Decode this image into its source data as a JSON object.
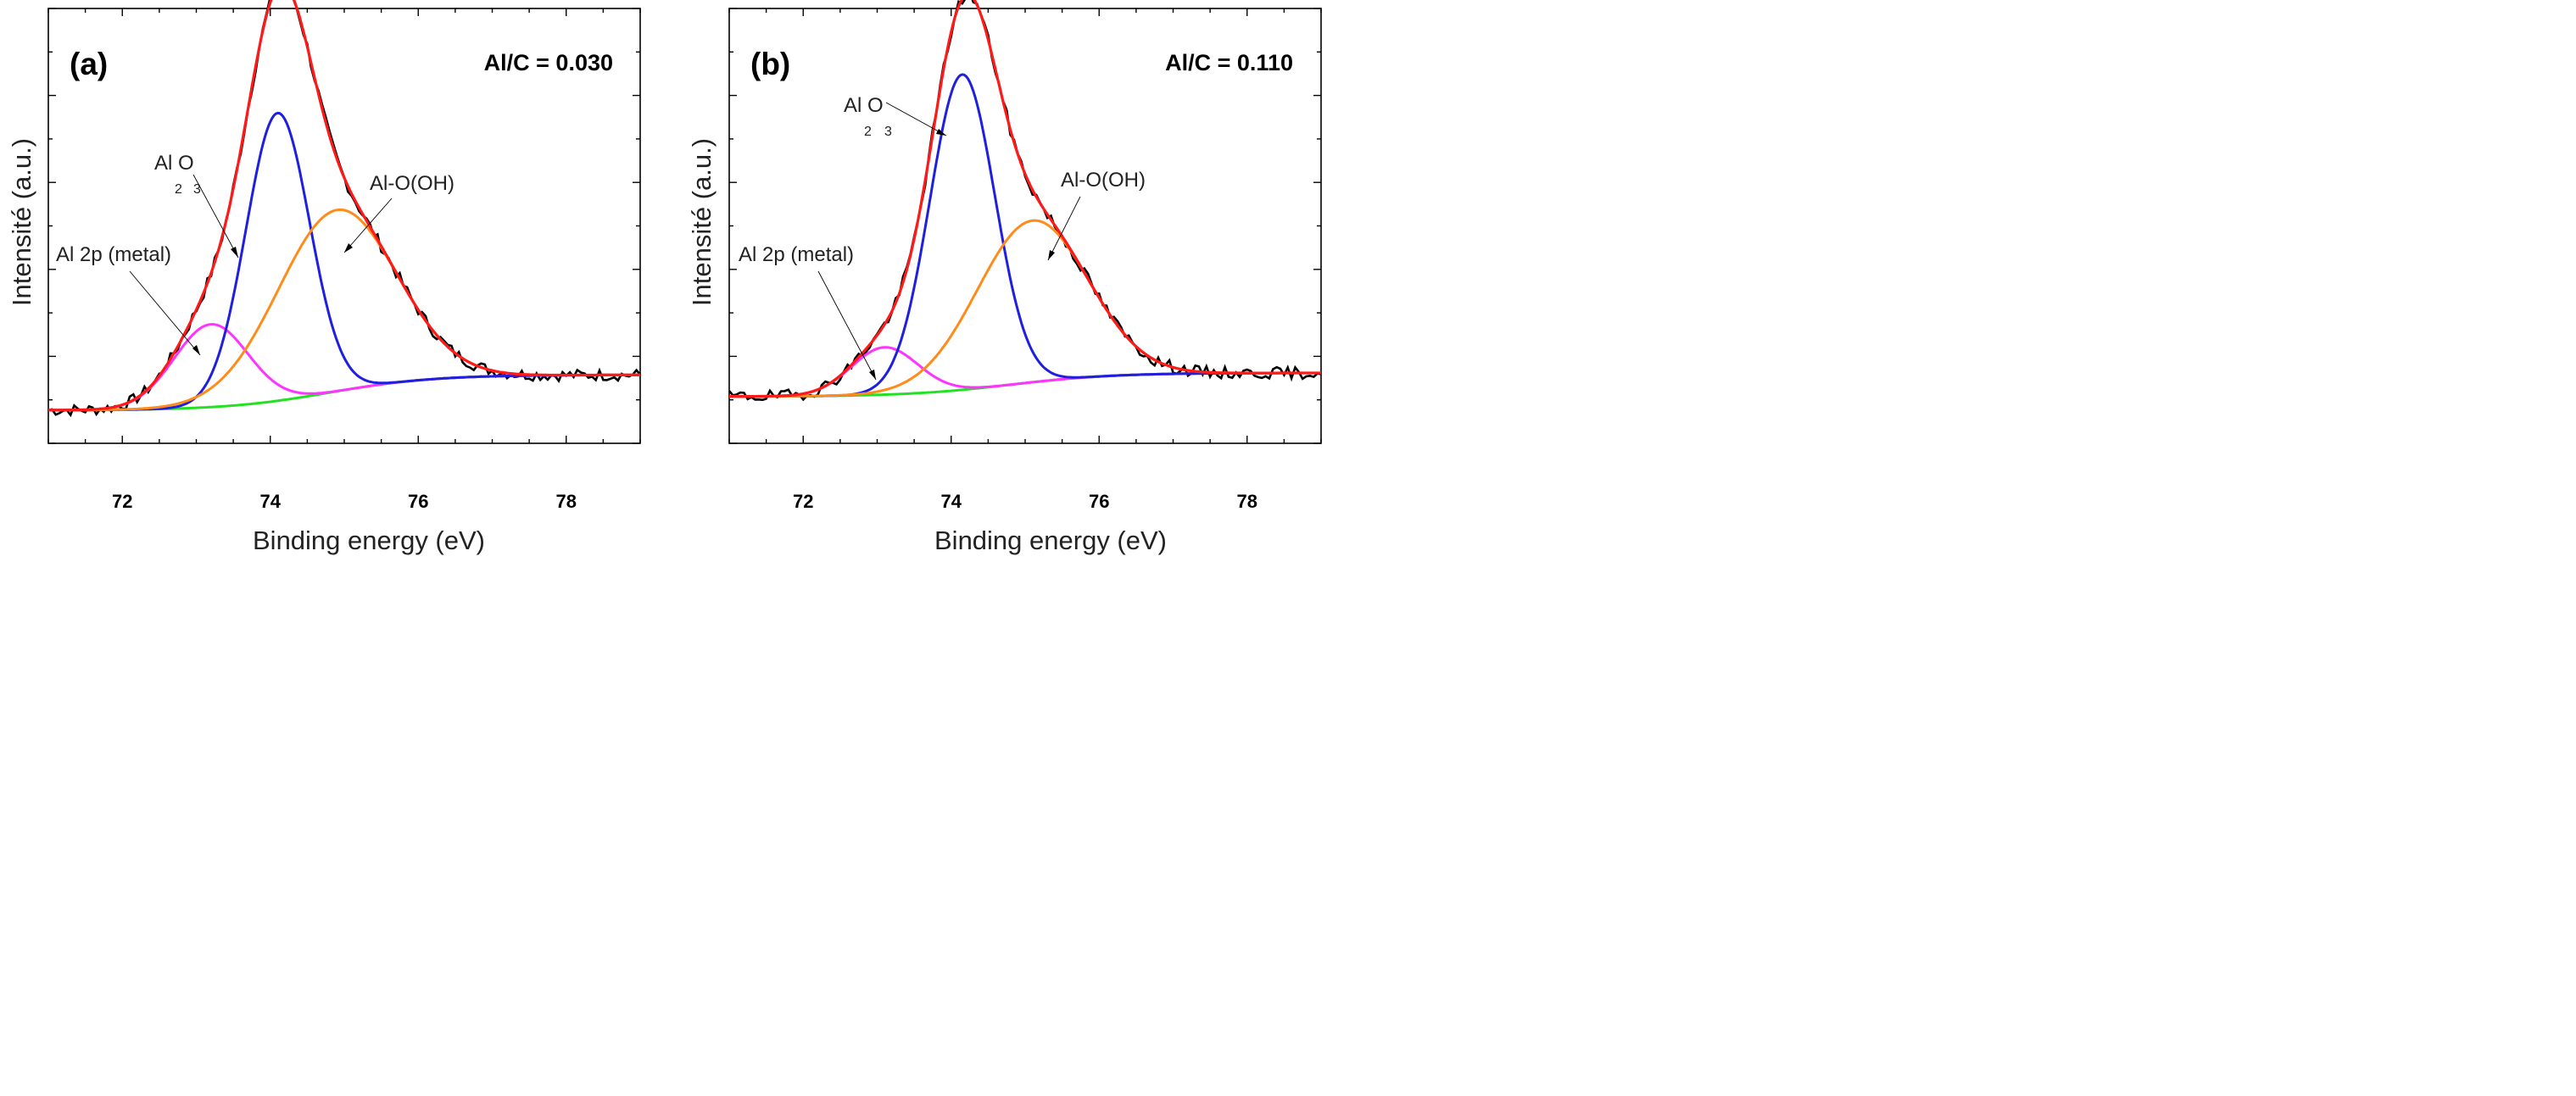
{
  "chart_data": [
    {
      "type": "line",
      "panel_label": "(a)",
      "ratio_label": "Al/C = 0.030",
      "xlabel": "Binding energy (eV)",
      "ylabel": "Intensité (a.u.)",
      "xlim": [
        71,
        79
      ],
      "ylim": [
        0,
        1.05
      ],
      "xticks": [
        72,
        74,
        76,
        78
      ],
      "yticks_minor_count": 10,
      "annotations": {
        "metal": "Al 2p (metal)",
        "oxide_main": "Al O",
        "oxide_sub1": "2",
        "oxide_sub2": "3",
        "hydroxide": "Al-O(OH)"
      },
      "series": [
        {
          "name": "Al 2p (metal)",
          "color": "#ff33ff",
          "center": 73.2,
          "amplitude": 0.21,
          "sigma": 0.5
        },
        {
          "name": "Al2O3",
          "color": "#1f1fe0",
          "center": 74.1,
          "amplitude": 0.73,
          "sigma": 0.43
        },
        {
          "name": "Al-O(OH)",
          "color": "#ff8c1a",
          "center": 74.9,
          "amplitude": 0.46,
          "sigma": 0.8
        },
        {
          "name": "Background",
          "color": "#22e022",
          "start": 0.045,
          "end": 0.135
        },
        {
          "name": "Envelope fit",
          "color": "#ff1a1a"
        },
        {
          "name": "Experimental",
          "color": "#000000"
        }
      ]
    },
    {
      "type": "line",
      "panel_label": "(b)",
      "ratio_label": "Al/C = 0.110",
      "xlabel": "Binding energy (eV)",
      "ylabel": "Intensité (a.u.)",
      "xlim": [
        71,
        79
      ],
      "ylim": [
        0,
        1.05
      ],
      "xticks": [
        72,
        74,
        76,
        78
      ],
      "yticks_minor_count": 10,
      "annotations": {
        "metal": "Al 2p (metal)",
        "oxide_main": "Al O",
        "oxide_sub1": "2",
        "oxide_sub2": "3",
        "hydroxide": "Al-O(OH)"
      },
      "series": [
        {
          "name": "Al 2p (metal)",
          "color": "#ff33ff",
          "center": 73.1,
          "amplitude": 0.12,
          "sigma": 0.45
        },
        {
          "name": "Al2O3",
          "color": "#1f1fe0",
          "center": 74.15,
          "amplitude": 0.8,
          "sigma": 0.44
        },
        {
          "name": "Al-O(OH)",
          "color": "#ff8c1a",
          "center": 75.1,
          "amplitude": 0.41,
          "sigma": 0.75
        },
        {
          "name": "Background",
          "color": "#22e022",
          "start": 0.08,
          "end": 0.14
        },
        {
          "name": "Envelope fit",
          "color": "#ff1a1a"
        },
        {
          "name": "Experimental",
          "color": "#000000"
        }
      ]
    }
  ]
}
